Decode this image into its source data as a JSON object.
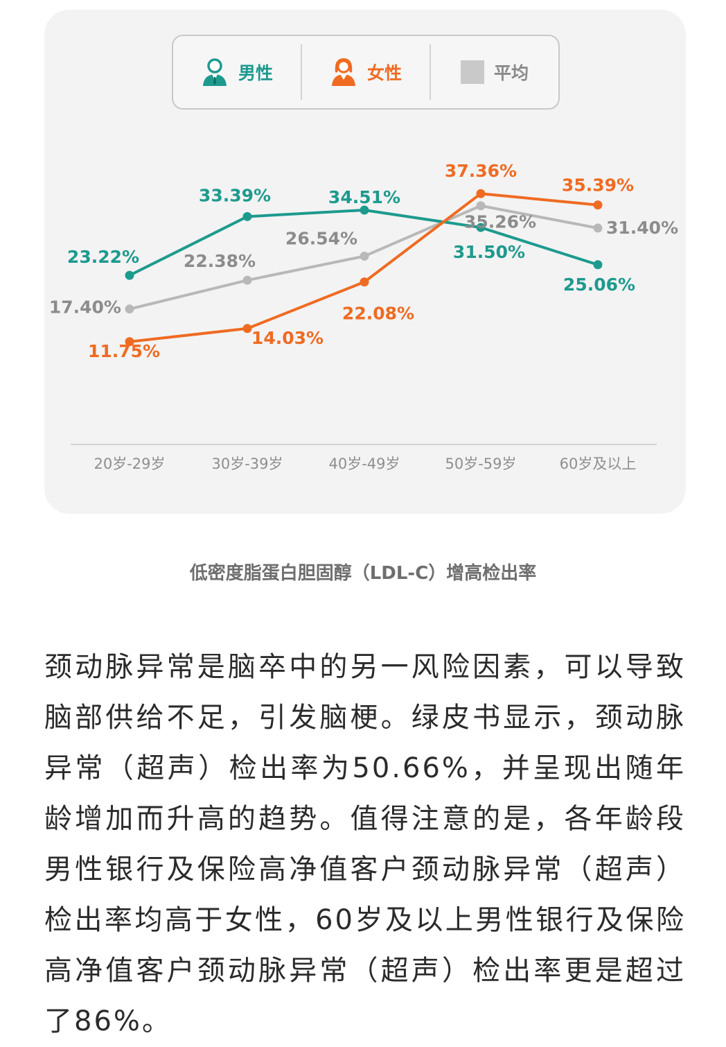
{
  "legend": {
    "male_label": "男性",
    "female_label": "女性",
    "avg_label": "平均",
    "male_icon": "male-person-icon",
    "female_icon": "female-person-icon"
  },
  "colors": {
    "male": "#1d9a8e",
    "female": "#ef6b22",
    "average": "#b8b8b8",
    "card": "#f3f3f3"
  },
  "chart_data": {
    "type": "line",
    "categories": [
      "20岁-29岁",
      "30岁-39岁",
      "40岁-49岁",
      "50岁-59岁",
      "60岁及以上"
    ],
    "series": [
      {
        "name": "男性",
        "values": [
          23.22,
          33.39,
          34.51,
          31.5,
          25.06
        ],
        "labels": [
          "23.22%",
          "33.39%",
          "34.51%",
          "31.50%",
          "25.06%"
        ]
      },
      {
        "name": "女性",
        "values": [
          11.75,
          14.03,
          22.08,
          37.36,
          35.39
        ],
        "labels": [
          "11.75%",
          "14.03%",
          "22.08%",
          "37.36%",
          "35.39%"
        ]
      },
      {
        "name": "平均",
        "values": [
          17.4,
          22.38,
          26.54,
          35.26,
          31.4
        ],
        "labels": [
          "17.40%",
          "22.38%",
          "26.54%",
          "35.26%",
          "31.40%"
        ]
      }
    ],
    "title": "",
    "xlabel": "",
    "ylabel": "",
    "grid": false,
    "legend": "top-center"
  },
  "caption": "低密度脂蛋白胆固醇（LDL-C）增高检出率",
  "paragraph": "颈动脉异常是脑卒中的另一风险因素，可以导致脑部供给不足，引发脑梗。绿皮书显示，颈动脉异常（超声）检出率为50.66%，并呈现出随年龄增加而升高的趋势。值得注意的是，各年龄段男性银行及保险高净值客户颈动脉异常（超声）检出率均高于女性，60岁及以上男性银行及保险高净值客户颈动脉异常（超声）检出率更是超过了86%。"
}
